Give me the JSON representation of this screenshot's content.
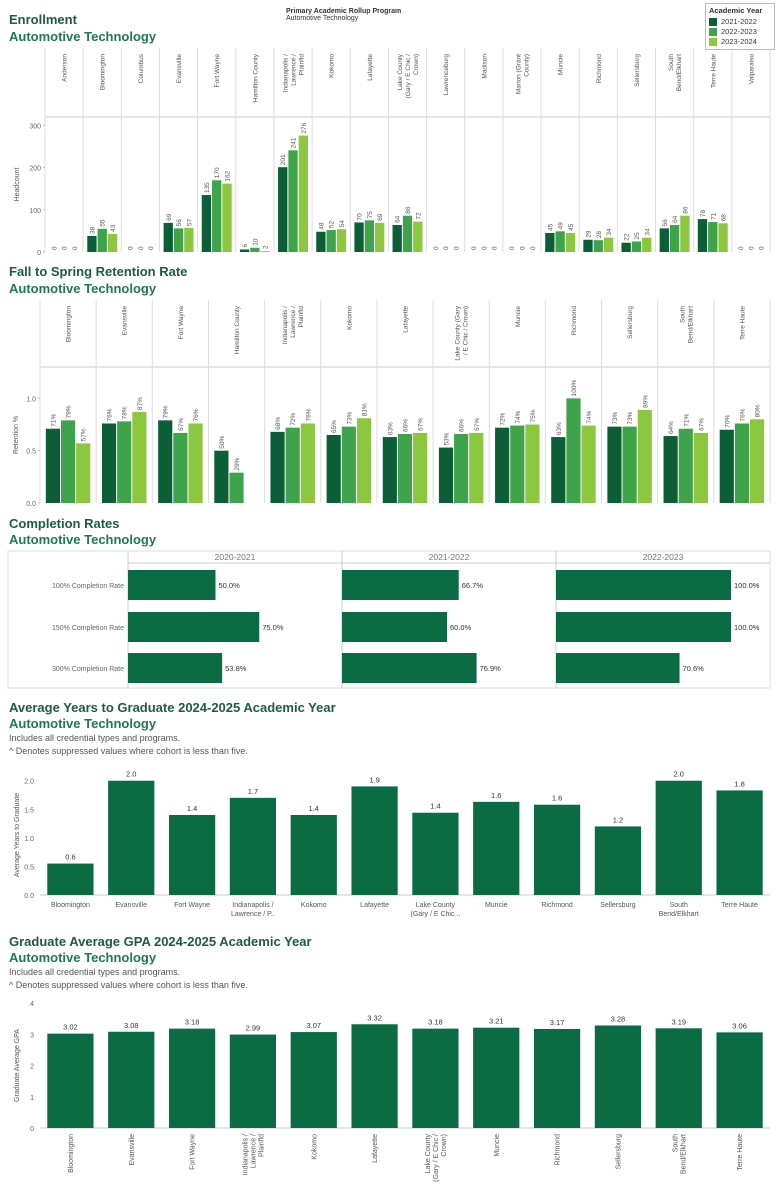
{
  "header": {
    "rollup_title": "Primary Academic Rollup Program",
    "rollup_value": "Automotive Technology",
    "legend_title": "Academic Year",
    "legend_items": [
      {
        "label": "2021-2022",
        "color": "#0b5e35"
      },
      {
        "label": "2022-2023",
        "color": "#3ea34a"
      },
      {
        "label": "2023-2024",
        "color": "#8dc63f"
      }
    ]
  },
  "enrollment": {
    "title": "Enrollment",
    "subtitle": "Automotive Technology",
    "chart_data": {
      "type": "bar",
      "ylabel": "Headcount",
      "ylim": [
        0,
        320
      ],
      "yticks": [
        0,
        100,
        200,
        300
      ],
      "categories": [
        "Anderson",
        "Bloomington",
        "Columbus",
        "Evansville",
        "Fort Wayne",
        "Hamilton County",
        "Indianapolis / Lawrence / Plainfld",
        "Kokomo",
        "Lafayette",
        "Lake County (Gary / E Chic / Crown)",
        "Lawrenceburg",
        "Madison",
        "Marion (Grant County)",
        "Muncie",
        "Richmond",
        "Sellersburg",
        "South Bend/Elkhart",
        "Terre Haute",
        "Valparaiso"
      ],
      "series": [
        {
          "name": "2021-2022",
          "values": [
            0,
            38,
            0,
            69,
            135,
            6,
            201,
            48,
            70,
            64,
            0,
            0,
            0,
            45,
            29,
            22,
            56,
            78,
            0
          ]
        },
        {
          "name": "2022-2023",
          "values": [
            0,
            55,
            0,
            56,
            170,
            10,
            241,
            52,
            75,
            86,
            0,
            0,
            0,
            49,
            28,
            25,
            64,
            71,
            0
          ]
        },
        {
          "name": "2023-2024",
          "values": [
            0,
            43,
            0,
            57,
            162,
            2,
            276,
            54,
            69,
            72,
            0,
            0,
            0,
            45,
            34,
            34,
            86,
            68,
            0
          ]
        }
      ]
    }
  },
  "retention": {
    "title": "Fall to Spring Retention Rate",
    "subtitle": "Automotive Technology",
    "chart_data": {
      "type": "bar",
      "ylabel": "Retention %",
      "ylim": [
        0,
        1.3
      ],
      "yticks": [
        {
          "v": 0,
          "label": "0.0"
        },
        {
          "v": 0.5,
          "label": "0.5"
        },
        {
          "v": 1,
          "label": "1.0"
        }
      ],
      "categories": [
        "Bloomington",
        "Evansville",
        "Fort Wayne",
        "Hamilton County",
        "Indianapolis / Lawrence / Plainfld",
        "Kokomo",
        "Lafayette",
        "Lake County (Gary / E Chic / Crown)",
        "Muncie",
        "Richmond",
        "Sellersburg",
        "South Bend/Elkhart",
        "Terre Haute"
      ],
      "series": [
        {
          "name": "2021-2022",
          "values": [
            0.71,
            0.76,
            0.79,
            0.5,
            0.68,
            0.65,
            0.63,
            0.53,
            0.72,
            0.63,
            0.73,
            0.64,
            0.7
          ],
          "labels": [
            "71%",
            "76%",
            "79%",
            "50%",
            "68%",
            "65%",
            "63%",
            "53%",
            "72%",
            "63%",
            "73%",
            "64%",
            "70%"
          ]
        },
        {
          "name": "2022-2023",
          "values": [
            0.79,
            0.78,
            0.67,
            0.29,
            0.72,
            0.73,
            0.66,
            0.66,
            0.74,
            1.0,
            0.73,
            0.71,
            0.76
          ],
          "labels": [
            "79%",
            "78%",
            "67%",
            "29%",
            "72%",
            "73%",
            "66%",
            "66%",
            "74%",
            "100%",
            "73%",
            "71%",
            "76%"
          ]
        },
        {
          "name": "2023-2024",
          "values": [
            0.57,
            0.87,
            0.76,
            null,
            0.76,
            0.81,
            0.67,
            0.67,
            0.75,
            0.74,
            0.89,
            0.67,
            0.8
          ],
          "labels": [
            "57%",
            "87%",
            "76%",
            "",
            "76%",
            "81%",
            "67%",
            "67%",
            "75%",
            "74%",
            "89%",
            "67%",
            "80%"
          ]
        }
      ]
    }
  },
  "completion": {
    "title": "Completion Rates",
    "subtitle": "Automotive Technology",
    "chart_data": {
      "type": "bar",
      "orientation": "horizontal",
      "categories": [
        "100% Completion Rate",
        "150% Completion Rate",
        "300% Completion Rate"
      ],
      "panels": [
        {
          "name": "2020-2021",
          "values": [
            50.0,
            75.0,
            53.8
          ],
          "labels": [
            "50.0%",
            "75.0%",
            "53.8%"
          ]
        },
        {
          "name": "2021-2022",
          "values": [
            66.7,
            60.0,
            76.9
          ],
          "labels": [
            "66.7%",
            "60.0%",
            "76.9%"
          ]
        },
        {
          "name": "2022-2023",
          "values": [
            100.0,
            100.0,
            70.6
          ],
          "labels": [
            "100.0%",
            "100.0%",
            "70.6%"
          ]
        }
      ],
      "xlim": [
        0,
        100
      ]
    }
  },
  "years": {
    "title": "Average Years to Graduate 2024-2025 Academic Year",
    "subtitle": "Automotive Technology",
    "note1": "Includes all credential types and programs.",
    "note2": "^ Denotes suppressed values where cohort is less than five.",
    "chart_data": {
      "type": "bar",
      "ylabel": "Average Years to Graduate",
      "ylim": [
        0,
        2.1
      ],
      "yticks": [
        {
          "v": 0,
          "label": "0.0"
        },
        {
          "v": 0.5,
          "label": "0.5"
        },
        {
          "v": 1,
          "label": "1.0"
        },
        {
          "v": 1.5,
          "label": "1.5"
        },
        {
          "v": 2,
          "label": "2.0"
        }
      ],
      "categories": [
        [
          "Bloomington"
        ],
        [
          "Evansville"
        ],
        [
          "Fort Wayne"
        ],
        [
          "Indianapolis /",
          "Lawrence / P.."
        ],
        [
          "Kokomo"
        ],
        [
          "Lafayette"
        ],
        [
          "Lake County",
          "(Gary / E Chic .."
        ],
        [
          "Muncie"
        ],
        [
          "Richmond"
        ],
        [
          "Sellersburg"
        ],
        [
          "South",
          "Bend/Elkhart"
        ],
        [
          "Terre Haute"
        ]
      ],
      "values": [
        0.55,
        2.0,
        1.4,
        1.7,
        1.4,
        1.9,
        1.44,
        1.63,
        1.58,
        1.2,
        2.0,
        1.83
      ],
      "labels": [
        "0.6",
        "2.0",
        "1.4",
        "1.7",
        "1.4",
        "1.9",
        "1.4",
        "1.6",
        "1.6",
        "1.2",
        "2.0",
        "1.8"
      ]
    }
  },
  "gpa": {
    "title": "Graduate Average GPA 2024-2025 Academic Year",
    "subtitle": "Automotive Technology",
    "note1": "Includes all credential types and programs.",
    "note2": "^ Denotes suppressed values where cohort is less than five.",
    "chart_data": {
      "type": "bar",
      "ylabel": "Graduate Average GPA",
      "ylim": [
        0,
        4
      ],
      "yticks": [
        {
          "v": 0,
          "label": "0"
        },
        {
          "v": 1,
          "label": "1"
        },
        {
          "v": 2,
          "label": "2"
        },
        {
          "v": 3,
          "label": "3"
        },
        {
          "v": 4,
          "label": "4"
        }
      ],
      "categories": [
        [
          "Bloomington"
        ],
        [
          "Evansville"
        ],
        [
          "Fort Wayne"
        ],
        [
          "Indianapolis /",
          "Lawrence /",
          "Plainfld"
        ],
        [
          "Kokomo"
        ],
        [
          "Lafayette"
        ],
        [
          "Lake County",
          "(Gary / E Chic /",
          "Crown)"
        ],
        [
          "Muncie"
        ],
        [
          "Richmond"
        ],
        [
          "Sellersburg"
        ],
        [
          "South",
          "Bend/Elkhart"
        ],
        [
          "Terre Haute"
        ]
      ],
      "values": [
        3.02,
        3.08,
        3.18,
        2.99,
        3.07,
        3.32,
        3.18,
        3.21,
        3.17,
        3.28,
        3.19,
        3.06
      ],
      "labels": [
        "3.02",
        "3.08",
        "3.18",
        "2.99",
        "3.07",
        "3.32",
        "3.18",
        "3.21",
        "3.17",
        "3.28",
        "3.19",
        "3.06"
      ]
    }
  }
}
